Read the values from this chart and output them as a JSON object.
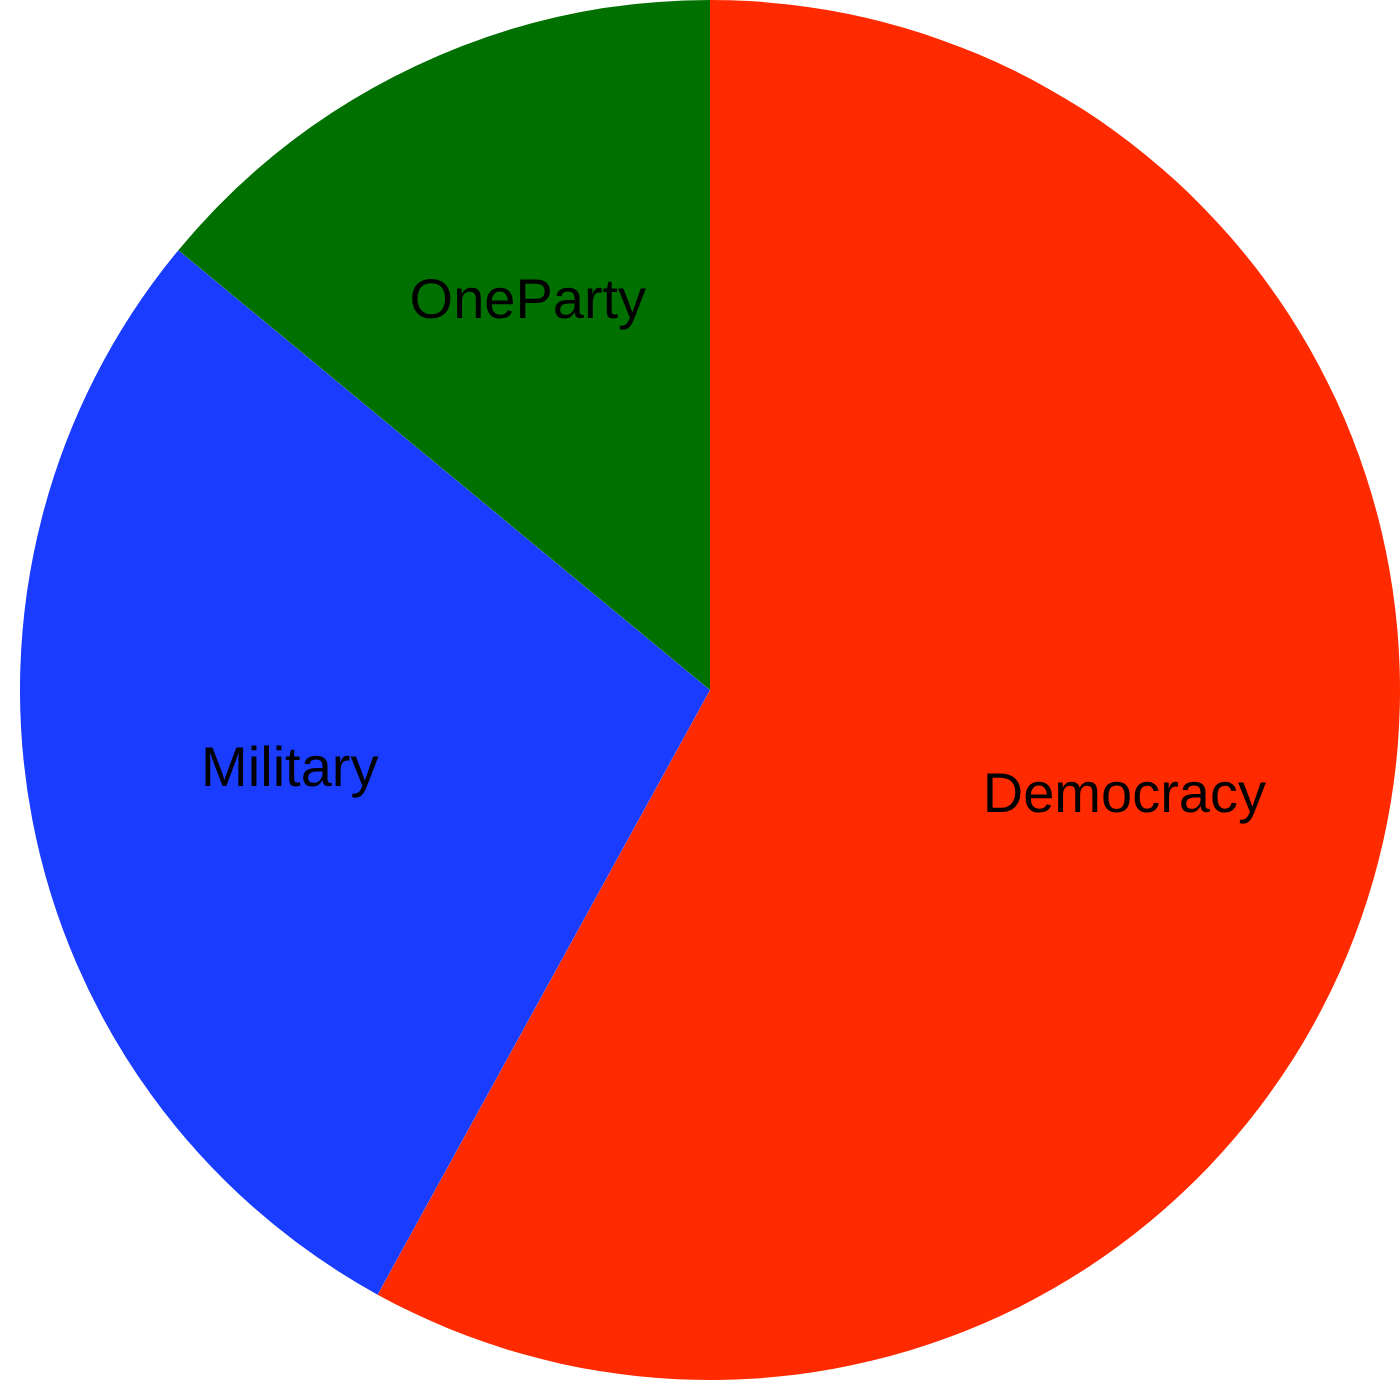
{
  "chart_data": {
    "type": "pie",
    "categories": [
      "Democracy",
      "Military",
      "OneParty"
    ],
    "values": [
      58,
      28,
      14
    ],
    "colors": [
      "#ff2a00",
      "#1a3cff",
      "#007000"
    ],
    "legend": false
  }
}
